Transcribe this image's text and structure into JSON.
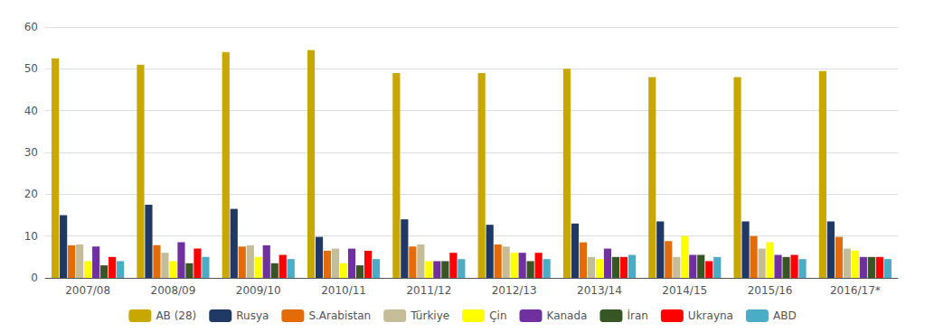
{
  "chart_data": {
    "type": "bar",
    "categories": [
      "2007/08",
      "2008/09",
      "2009/10",
      "2010/11",
      "2011/12",
      "2012/13",
      "2013/14",
      "2014/15",
      "2015/16",
      "2016/17*"
    ],
    "series": [
      {
        "name": "AB (28)",
        "color": "#C8A800",
        "values": [
          52.5,
          51.0,
          54.0,
          54.5,
          49.0,
          49.0,
          50.0,
          48.0,
          48.0,
          49.5
        ]
      },
      {
        "name": "Rusya",
        "color": "#1F3864",
        "values": [
          15.0,
          17.5,
          16.5,
          9.8,
          14.0,
          12.7,
          13.0,
          13.5,
          13.5,
          13.5
        ]
      },
      {
        "name": "S.Arabistan",
        "color": "#E36C09",
        "values": [
          7.8,
          7.8,
          7.5,
          6.5,
          7.5,
          8.0,
          8.5,
          8.8,
          10.0,
          9.8
        ]
      },
      {
        "name": "Türkiye",
        "color": "#C4BD97",
        "values": [
          8.0,
          6.0,
          7.8,
          7.0,
          8.0,
          7.5,
          5.0,
          5.0,
          7.0,
          7.0
        ]
      },
      {
        "name": "Çin",
        "color": "#FFFF00",
        "values": [
          4.0,
          4.0,
          5.0,
          3.5,
          4.0,
          6.0,
          4.5,
          10.0,
          8.5,
          6.5
        ]
      },
      {
        "name": "Kanada",
        "color": "#7030A0",
        "values": [
          7.5,
          8.5,
          7.8,
          7.0,
          4.0,
          6.0,
          7.0,
          5.5,
          5.5,
          5.0
        ]
      },
      {
        "name": "İran",
        "color": "#375623",
        "values": [
          3.0,
          3.5,
          3.5,
          3.0,
          4.0,
          4.0,
          5.0,
          5.5,
          5.0,
          5.0
        ]
      },
      {
        "name": "Ukrayna",
        "color": "#FF0000",
        "values": [
          5.0,
          7.0,
          5.5,
          6.5,
          6.0,
          6.0,
          5.0,
          4.0,
          5.5,
          5.0
        ]
      },
      {
        "name": "ABD",
        "color": "#4BACC6",
        "values": [
          4.0,
          5.0,
          4.5,
          4.5,
          4.5,
          4.5,
          5.5,
          5.0,
          4.5,
          4.5
        ]
      }
    ],
    "ylim": [
      0,
      60
    ],
    "yticks": [
      0,
      10,
      20,
      30,
      40,
      50,
      60
    ],
    "grid": true,
    "legend": "bottom"
  }
}
